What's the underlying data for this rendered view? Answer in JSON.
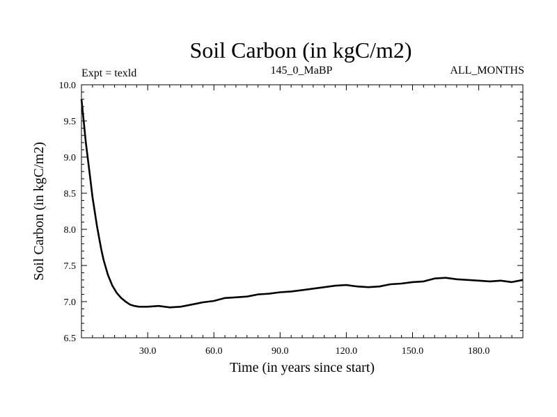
{
  "chart_data": {
    "type": "line",
    "title": "Soil Carbon (in kgC/m2)",
    "header_left": "Expt = texld",
    "header_center": "145_0_MaBP",
    "header_right": "ALL_MONTHS",
    "xlabel": "Time (in years since start)",
    "ylabel": "Soil Carbon (in kgC/m2)",
    "xlim": [
      0,
      200
    ],
    "ylim": [
      6.5,
      10.0
    ],
    "x_ticks": [
      30,
      60,
      90,
      120,
      150,
      180
    ],
    "x_tick_labels": [
      "30.0",
      "60.0",
      "90.0",
      "120.0",
      "150.0",
      "180.0"
    ],
    "y_ticks": [
      6.5,
      7.0,
      7.5,
      8.0,
      8.5,
      9.0,
      9.5,
      10.0
    ],
    "y_tick_labels": [
      "6.5",
      "7.0",
      "7.5",
      "8.0",
      "8.5",
      "9.0",
      "9.5",
      "10.0"
    ],
    "grid": false,
    "series": [
      {
        "name": "Soil Carbon",
        "color": "#000000",
        "x": [
          0,
          1,
          2,
          3,
          4,
          5,
          6,
          7,
          8,
          9,
          10,
          12,
          14,
          16,
          18,
          20,
          22,
          24,
          26,
          28,
          30,
          35,
          40,
          45,
          50,
          55,
          60,
          65,
          70,
          75,
          80,
          85,
          90,
          95,
          100,
          105,
          110,
          115,
          120,
          125,
          130,
          135,
          140,
          145,
          150,
          155,
          160,
          165,
          170,
          175,
          180,
          185,
          190,
          195,
          200
        ],
        "y": [
          9.8,
          9.5,
          9.2,
          8.95,
          8.7,
          8.45,
          8.25,
          8.05,
          7.88,
          7.72,
          7.58,
          7.37,
          7.22,
          7.12,
          7.05,
          7.0,
          6.96,
          6.94,
          6.93,
          6.93,
          6.93,
          6.94,
          6.92,
          6.93,
          6.96,
          6.99,
          7.01,
          7.05,
          7.06,
          7.07,
          7.1,
          7.11,
          7.13,
          7.14,
          7.16,
          7.18,
          7.2,
          7.22,
          7.23,
          7.21,
          7.2,
          7.21,
          7.24,
          7.25,
          7.27,
          7.28,
          7.32,
          7.33,
          7.31,
          7.3,
          7.29,
          7.28,
          7.29,
          7.27,
          7.3
        ]
      }
    ]
  }
}
